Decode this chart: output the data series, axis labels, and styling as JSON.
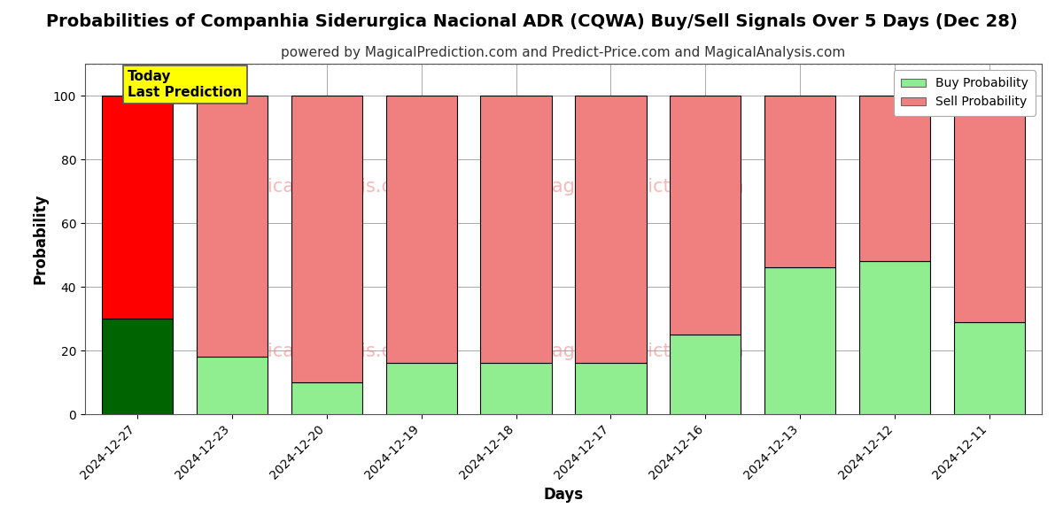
{
  "title": "Probabilities of Companhia Siderurgica Nacional ADR (CQWA) Buy/Sell Signals Over 5 Days (Dec 28)",
  "subtitle": "powered by MagicalPrediction.com and Predict-Price.com and MagicalAnalysis.com",
  "xlabel": "Days",
  "ylabel": "Probability",
  "categories": [
    "2024-12-27",
    "2024-12-23",
    "2024-12-20",
    "2024-12-19",
    "2024-12-18",
    "2024-12-17",
    "2024-12-16",
    "2024-12-13",
    "2024-12-12",
    "2024-12-11"
  ],
  "buy_values": [
    30,
    18,
    10,
    16,
    16,
    16,
    25,
    46,
    48,
    29
  ],
  "sell_values": [
    70,
    82,
    90,
    84,
    84,
    84,
    75,
    54,
    52,
    71
  ],
  "today_bar_buy_color": "#006400",
  "today_bar_sell_color": "#ff0000",
  "other_bar_buy_color": "#90EE90",
  "other_bar_sell_color": "#F08080",
  "bar_edge_color": "#000000",
  "legend_buy_color": "#90EE90",
  "legend_sell_color": "#F08080",
  "today_annotation_text": "Today\nLast Prediction",
  "today_annotation_bg": "#ffff00",
  "ylim": [
    0,
    110
  ],
  "dashed_line_y": 110,
  "background_color": "#ffffff",
  "grid_color": "#aaaaaa",
  "title_fontsize": 14,
  "subtitle_fontsize": 11,
  "axis_label_fontsize": 12,
  "tick_fontsize": 10
}
